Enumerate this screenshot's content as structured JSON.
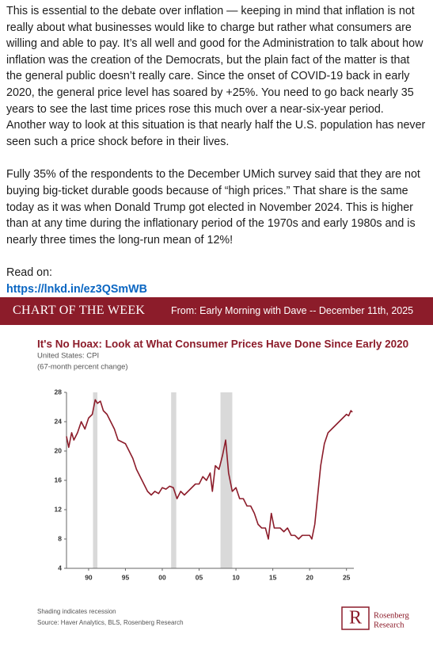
{
  "post": {
    "paragraphs": [
      "This is essential to the debate over inflation — keeping in mind that inflation is not really about what businesses would like to charge but rather what consumers are willing and able to pay. It’s all well and good for the Administration to talk about how inflation was the creation of the Democrats, but the plain fact of the matter is that the general public doesn’t really care. Since the onset of COVID-19 back in early 2020, the general price level has soared by +25%. You need to go back nearly 35 years to see the last time prices rose this much over a near-six-year period. Another way to look at this situation is that nearly half the U.S. population has never seen such a price shock before in their lives.",
      "Fully 35% of the respondents to the December UMich survey said that they are not buying big-ticket durable goods because of “high prices.” That share is the same today as it was when Donald Trump got elected in November 2024. This is higher than at any time during the inflationary period of the 1970s and early 1980s and is nearly three times the long-run mean of 12%!"
    ],
    "read_on": "Read on:",
    "link": "https://lnkd.in/ez3QSmWB"
  },
  "banner": {
    "label": "CHART OF THE WEEK",
    "from": "From: Early Morning with Dave -- December 11th, 2025"
  },
  "chart_data": {
    "type": "line",
    "title": "It's No Hoax: Look at What Consumer Prices Have Done Since Early 2020",
    "subtitle": "United States: CPI",
    "subtitle2": "(67-month percent change)",
    "color": "#8c1c2a",
    "x": [
      1987,
      1987.3,
      1987.7,
      1988,
      1988.5,
      1989,
      1989.5,
      1990,
      1990.5,
      1990.9,
      1991.2,
      1991.6,
      1992,
      1992.5,
      1993,
      1993.5,
      1994,
      1995,
      1995.5,
      1996,
      1996.5,
      1997,
      1997.5,
      1998,
      1998.5,
      1999,
      1999.5,
      2000,
      2000.5,
      2001,
      2001.5,
      2002,
      2002.5,
      2003,
      2003.5,
      2004,
      2004.5,
      2005,
      2005.5,
      2006,
      2006.5,
      2006.8,
      2007.2,
      2007.7,
      2008.2,
      2008.6,
      2009,
      2009.5,
      2010,
      2010.5,
      2011,
      2011.5,
      2012,
      2012.5,
      2013,
      2013.5,
      2014,
      2014.4,
      2014.8,
      2015.2,
      2015.6,
      2016,
      2016.5,
      2017,
      2017.5,
      2018,
      2018.5,
      2019,
      2019.5,
      2020,
      2020.3,
      2020.7,
      2021,
      2021.5,
      2022,
      2022.5,
      2023,
      2023.5,
      2024,
      2024.5,
      2025,
      2025.3,
      2025.6,
      2025.8
    ],
    "values": [
      22,
      20.5,
      22.5,
      21.5,
      22.5,
      24,
      23,
      24.5,
      25,
      27,
      26.5,
      26.8,
      25.5,
      25,
      24,
      23,
      21.5,
      21,
      20,
      19,
      17.5,
      16.5,
      15.5,
      14.5,
      14,
      14.5,
      14.2,
      15,
      14.8,
      15.2,
      15,
      13.5,
      14.5,
      14,
      14.5,
      15,
      15.5,
      15.5,
      16.5,
      16,
      17,
      14.5,
      18,
      17.5,
      19.5,
      21.5,
      17,
      14.5,
      15,
      13.5,
      13.5,
      12.5,
      12.5,
      11.5,
      10,
      9.5,
      9.5,
      8,
      11.5,
      9.5,
      9.5,
      9.5,
      9,
      9.5,
      8.5,
      8.5,
      8,
      8.5,
      8.5,
      8.5,
      8,
      10,
      13,
      18,
      21,
      22.5,
      23,
      23.5,
      24,
      24.5,
      25,
      24.8,
      25.5,
      25.3
    ],
    "recessions": [
      [
        1990.6,
        1991.2
      ],
      [
        2001.2,
        2001.9
      ],
      [
        2007.9,
        2009.5
      ]
    ],
    "recession_color": "#d9d9d9",
    "xlim": [
      1987,
      2026
    ],
    "ylim": [
      4,
      28
    ],
    "xticks": [
      {
        "value": 1990,
        "label": "90"
      },
      {
        "value": 1995,
        "label": "95"
      },
      {
        "value": 2000,
        "label": "00"
      },
      {
        "value": 2005,
        "label": "05"
      },
      {
        "value": 2010,
        "label": "10"
      },
      {
        "value": 2015,
        "label": "15"
      },
      {
        "value": 2020,
        "label": "20"
      },
      {
        "value": 2025,
        "label": "25"
      }
    ],
    "yticks": [
      4,
      8,
      12,
      16,
      20,
      24,
      28
    ],
    "note": "Shading indicates recession",
    "source": "Source: Haver Analytics, BLS, Rosenberg Research",
    "logo": [
      "Rosenberg",
      "Research"
    ]
  }
}
